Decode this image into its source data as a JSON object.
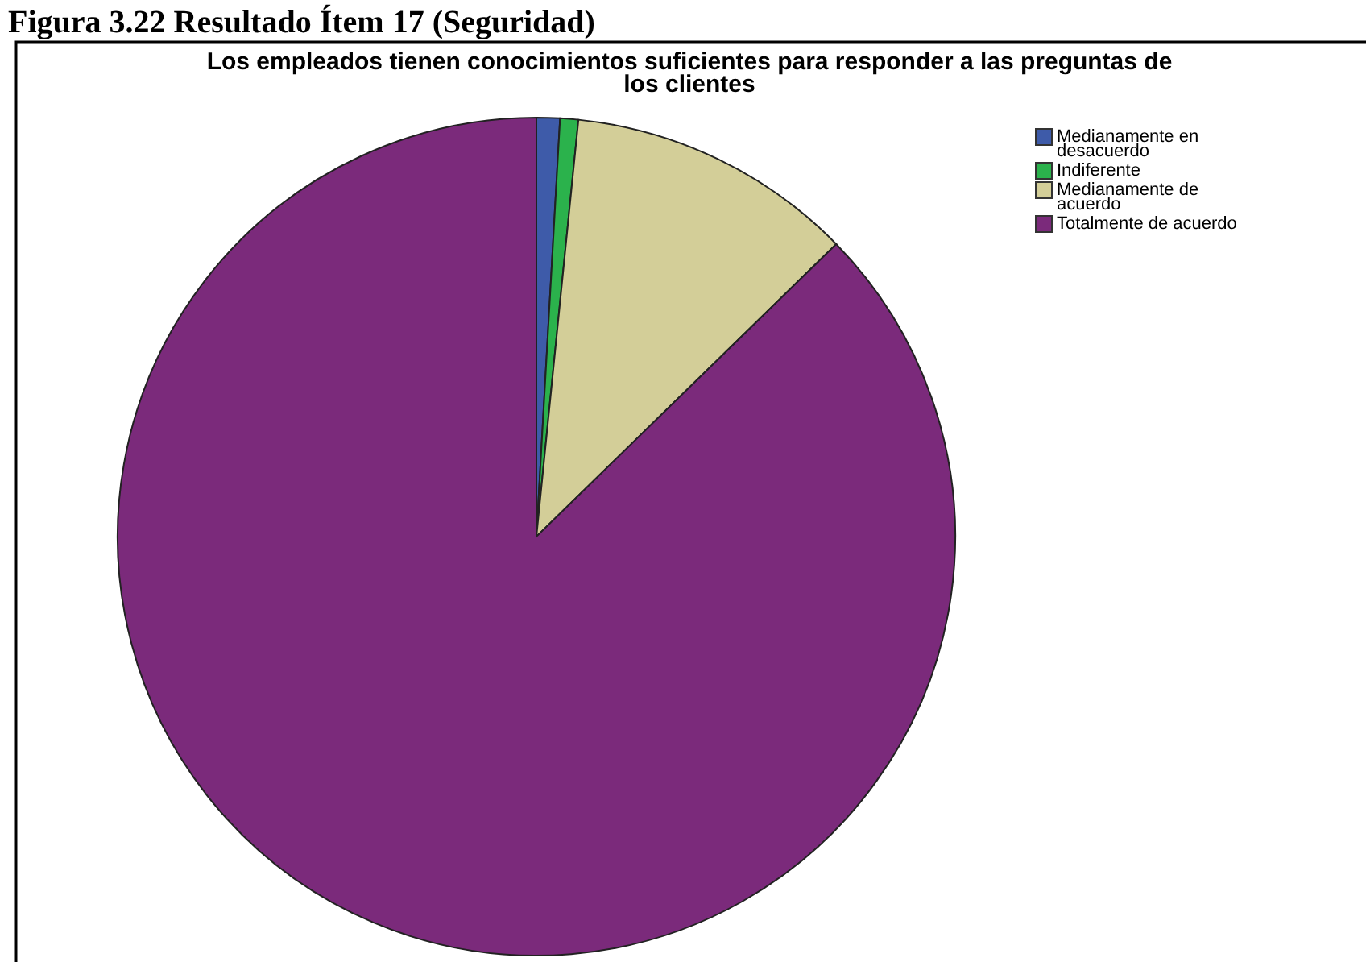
{
  "chart_data": {
    "type": "pie",
    "title": "Figura 3.22 Resultado Ítem 17 (Seguridad)",
    "subtitle": "Los empleados tienen conocimientos suficientes para responder a las preguntas de los  clientes",
    "categories": [
      "Medianamente en desacuerdo",
      "Indiferente",
      "Medianamente de acuerdo",
      "Totalmente de acuerdo"
    ],
    "values": [
      0.9,
      0.7,
      11.1,
      87.3
    ],
    "colors": [
      "#3e5ba9",
      "#2bb24c",
      "#d3ce98",
      "#7b2a7b"
    ],
    "legend": "top right"
  }
}
